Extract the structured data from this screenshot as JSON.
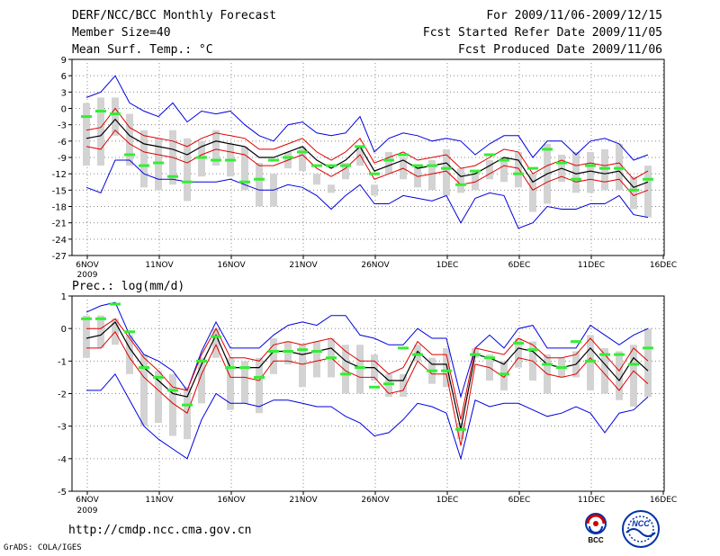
{
  "header": {
    "left": [
      "DERF/NCC/BCC Monthly Forecast",
      "Member Size=40",
      "Mean Surf. Temp.: °C"
    ],
    "right": [
      "For 2009/11/06-2009/12/15",
      "Fcst Started Refer Date 2009/11/05",
      "Fcst Produced Date 2009/11/06"
    ]
  },
  "footer": {
    "url": "http://cmdp.ncc.cma.gov.cn",
    "credit": "GrADS: COLA/IGES",
    "logos": [
      "BCC",
      "NCC"
    ]
  },
  "colors": {
    "mean": "#000000",
    "spread": "#e00000",
    "envelope": "#0000e0",
    "member_bar": "#d3d3d3",
    "marker": "#33ee33",
    "grid": "#888888"
  },
  "chart_data": [
    {
      "type": "line",
      "title": "Mean Surf. Temp.: °C",
      "x_tick_labels": [
        "6NOV",
        "11NOV",
        "16NOV",
        "21NOV",
        "26NOV",
        "1DEC",
        "6DEC",
        "11DEC",
        "16DEC"
      ],
      "x_sub_label": "2009",
      "ylim": [
        -27,
        9
      ],
      "yticks": [
        9,
        6,
        3,
        0,
        -3,
        -6,
        -9,
        -12,
        -15,
        -18,
        -21,
        -24,
        -27
      ],
      "days": 40,
      "series": [
        {
          "name": "ensemble mean",
          "values": [
            -5.5,
            -5,
            -2,
            -5,
            -6.5,
            -7,
            -7.5,
            -8.5,
            -7,
            -6,
            -6.5,
            -7,
            -9,
            -9,
            -8,
            -7,
            -9.5,
            -11,
            -9.5,
            -7,
            -11.5,
            -10.5,
            -9.5,
            -11,
            -10.5,
            -10,
            -12.5,
            -12,
            -10.5,
            -9,
            -9.5,
            -13.5,
            -12,
            -11,
            -12,
            -11.5,
            -12,
            -11.5,
            -14.5,
            -13.5
          ]
        },
        {
          "name": "upper spread",
          "values": [
            -4,
            -3.5,
            0,
            -3.5,
            -5,
            -5.5,
            -6,
            -7,
            -5.5,
            -4.5,
            -5,
            -5.5,
            -7.5,
            -7.5,
            -6.5,
            -5.5,
            -8,
            -9.5,
            -8,
            -5.5,
            -10,
            -9,
            -8,
            -9.5,
            -9,
            -8.5,
            -11,
            -10.5,
            -9,
            -7.5,
            -8,
            -12,
            -10.5,
            -9.5,
            -10.5,
            -10,
            -10.5,
            -10,
            -13,
            -11.5
          ]
        },
        {
          "name": "lower spread",
          "values": [
            -7,
            -7.5,
            -4,
            -6.5,
            -8,
            -8.5,
            -9,
            -10,
            -8.5,
            -7.5,
            -8,
            -8.5,
            -10.5,
            -10.5,
            -9.5,
            -8.5,
            -11,
            -12.5,
            -11,
            -8.5,
            -13,
            -12,
            -11,
            -12.5,
            -12,
            -11.5,
            -14,
            -13.5,
            -12,
            -10.5,
            -11,
            -15,
            -13.5,
            -12.5,
            -13.5,
            -13,
            -13.5,
            -13,
            -16,
            -15
          ]
        },
        {
          "name": "max envelope",
          "values": [
            2,
            3,
            6,
            1,
            -0.5,
            -1.5,
            1,
            -2.5,
            -0.5,
            -1,
            -0.5,
            -3,
            -5,
            -6,
            -3,
            -2.5,
            -4.5,
            -5,
            -4.5,
            -1.5,
            -8,
            -5.5,
            -4.5,
            -5,
            -6,
            -5.5,
            -6,
            -8.5,
            -6.5,
            -5,
            -5,
            -9,
            -6,
            -6,
            -8.5,
            -6,
            -5.5,
            -6.5,
            -9.5,
            -8.5
          ]
        },
        {
          "name": "min envelope",
          "values": [
            -14.5,
            -15.5,
            -9.5,
            -9.5,
            -12,
            -13,
            -13,
            -13.5,
            -13.5,
            -13.5,
            -13,
            -14,
            -15,
            -15,
            -14,
            -14.5,
            -16,
            -18.5,
            -16,
            -14,
            -17.5,
            -17.5,
            -16,
            -16.5,
            -17,
            -16,
            -21,
            -16.5,
            -15.5,
            -16,
            -22,
            -21,
            -18,
            -18.5,
            -18.5,
            -17.5,
            -17.5,
            -16,
            -19.5,
            -20
          ]
        },
        {
          "name": "member max",
          "values": [
            1,
            2,
            2,
            -1,
            -4,
            -5.5,
            -4,
            -5.5,
            -6,
            -4,
            -6.5,
            -7,
            -10,
            -12,
            -8,
            -7,
            -12,
            -14,
            -10,
            -7,
            -14,
            -8,
            -9,
            -10.5,
            -9.5,
            -7.5,
            -11,
            -11.5,
            -9.5,
            -9,
            -8,
            -12,
            -6.5,
            -8.5,
            -8,
            -8,
            -7.5,
            -6.5,
            -12.5,
            -10.5
          ]
        },
        {
          "name": "member min",
          "values": [
            -10.5,
            -10.5,
            -5,
            -10.5,
            -14.5,
            -15,
            -14,
            -17,
            -12.5,
            -10.5,
            -12.5,
            -15,
            -18,
            -18,
            -11,
            -11.5,
            -14,
            -15.5,
            -13,
            -10.5,
            -16,
            -12,
            -13,
            -14.5,
            -15,
            -16,
            -15.5,
            -15,
            -13,
            -13.5,
            -14.5,
            -19,
            -17.5,
            -13.5,
            -15.5,
            -15.5,
            -15,
            -15,
            -18.5,
            -20
          ]
        },
        {
          "name": "marker",
          "values": [
            -1.5,
            -0.5,
            -1,
            -8.5,
            -10.5,
            -10,
            -12.5,
            -13.5,
            -9,
            -9.5,
            -9.5,
            -13.5,
            -13,
            -9.5,
            -9,
            -8,
            -10.5,
            -10.5,
            -10.5,
            -7,
            -12,
            -9.5,
            -8.5,
            -10.5,
            -10.5,
            -11,
            -14,
            -11.5,
            -8.5,
            -9.5,
            -12,
            -11,
            -7.5,
            -10,
            -13,
            -10.5,
            -11,
            -11,
            -15,
            -13
          ]
        }
      ]
    },
    {
      "type": "line",
      "title": "Prec.: log(mm/d)",
      "x_tick_labels": [
        "6NOV",
        "11NOV",
        "16NOV",
        "21NOV",
        "26NOV",
        "1DEC",
        "6DEC",
        "11DEC",
        "16DEC"
      ],
      "x_sub_label": "2009",
      "ylim": [
        -5,
        1
      ],
      "yticks": [
        1,
        0,
        -1,
        -2,
        -3,
        -4,
        -5
      ],
      "days": 40,
      "series": [
        {
          "name": "ensemble mean",
          "values": [
            -0.3,
            -0.2,
            0.2,
            -0.6,
            -1.2,
            -1.6,
            -2,
            -2.1,
            -1.1,
            -0.2,
            -1.2,
            -1.2,
            -1.2,
            -0.7,
            -0.7,
            -0.8,
            -0.7,
            -0.6,
            -1,
            -1.2,
            -1.2,
            -1.6,
            -1.6,
            -0.7,
            -1.1,
            -1.1,
            -3.1,
            -0.8,
            -0.9,
            -1.1,
            -0.6,
            -0.7,
            -1.1,
            -1.2,
            -1.1,
            -0.6,
            -1.1,
            -1.6,
            -0.9,
            -1.3
          ]
        },
        {
          "name": "upper spread",
          "values": [
            0,
            0,
            0.3,
            -0.3,
            -0.9,
            -1.3,
            -1.8,
            -1.9,
            -0.8,
            0,
            -0.9,
            -0.9,
            -1,
            -0.5,
            -0.4,
            -0.5,
            -0.4,
            -0.3,
            -0.7,
            -1,
            -1,
            -1.4,
            -1.2,
            -0.4,
            -0.8,
            -0.8,
            -2.8,
            -0.6,
            -0.7,
            -0.8,
            -0.3,
            -0.5,
            -0.9,
            -0.9,
            -0.8,
            -0.3,
            -0.8,
            -1.3,
            -0.6,
            -1
          ]
        },
        {
          "name": "lower spread",
          "values": [
            -0.6,
            -0.6,
            -0.1,
            -0.9,
            -1.5,
            -1.9,
            -2.3,
            -2.6,
            -1.4,
            -0.5,
            -1.5,
            -1.5,
            -1.6,
            -1,
            -1,
            -1.1,
            -1,
            -0.9,
            -1.3,
            -1.5,
            -1.5,
            -2,
            -1.9,
            -1,
            -1.4,
            -1.4,
            -3.6,
            -1.1,
            -1.2,
            -1.5,
            -0.9,
            -1,
            -1.4,
            -1.5,
            -1.4,
            -0.9,
            -1.4,
            -1.9,
            -1.3,
            -1.7
          ]
        },
        {
          "name": "max envelope",
          "values": [
            0.5,
            0.7,
            0.8,
            -0.2,
            -0.8,
            -1,
            -1.3,
            -1.9,
            -0.7,
            0.2,
            -0.6,
            -0.6,
            -0.6,
            -0.2,
            0.1,
            0.2,
            0.1,
            0.4,
            0.4,
            -0.2,
            -0.3,
            -0.5,
            -0.5,
            0,
            -0.3,
            -0.3,
            -2.1,
            -0.6,
            -0.2,
            -0.6,
            0,
            0.1,
            -0.6,
            -0.6,
            -0.6,
            0.1,
            -0.2,
            -0.5,
            -0.2,
            0
          ]
        },
        {
          "name": "min envelope",
          "values": [
            -1.9,
            -1.9,
            -1.4,
            -2.2,
            -3,
            -3.4,
            -3.7,
            -4,
            -2.8,
            -2,
            -2.3,
            -2.3,
            -2.4,
            -2.2,
            -2.2,
            -2.3,
            -2.4,
            -2.4,
            -2.7,
            -2.9,
            -3.3,
            -3.2,
            -2.8,
            -2.3,
            -2.4,
            -2.6,
            -4,
            -2.2,
            -2.4,
            -2.3,
            -2.3,
            -2.5,
            -2.7,
            -2.6,
            -2.4,
            -2.6,
            -3.2,
            -2.6,
            -2.5,
            -2.1
          ]
        },
        {
          "name": "member max",
          "values": [
            0.4,
            0.4,
            0.3,
            -0.2,
            -0.8,
            -1.3,
            -1.4,
            -1.8,
            -0.9,
            0,
            -0.9,
            -1,
            -0.9,
            -0.3,
            -0.4,
            -0.5,
            -0.4,
            -0.3,
            -0.5,
            -0.5,
            -0.8,
            -1.4,
            -1.4,
            -0.5,
            -0.9,
            -0.6,
            -2.9,
            -0.6,
            -0.8,
            -1,
            -0.3,
            -0.4,
            -0.8,
            -0.9,
            -0.7,
            -0.2,
            -0.6,
            -0.7,
            -0.5,
            0
          ]
        },
        {
          "name": "member min",
          "values": [
            -0.9,
            -0.6,
            -0.5,
            -1.4,
            -3,
            -2.9,
            -3.3,
            -3.4,
            -2.3,
            -0.9,
            -2.5,
            -2.3,
            -2.6,
            -1.4,
            -1.1,
            -1.8,
            -1.5,
            -1.5,
            -2,
            -2,
            -1.6,
            -2.1,
            -2.1,
            -1,
            -1.7,
            -1.8,
            -3.4,
            -0.9,
            -1.6,
            -1.9,
            -1.2,
            -1.6,
            -2,
            -1.5,
            -1.5,
            -1.9,
            -2,
            -2.2,
            -2.4,
            -2.1
          ]
        },
        {
          "name": "marker",
          "values": [
            0.3,
            0.3,
            0.75,
            -0.1,
            -1.2,
            -1.5,
            -1.9,
            -2.35,
            -1,
            -0.25,
            -1.2,
            -1.2,
            -1.5,
            -0.7,
            -0.7,
            -0.65,
            -0.7,
            -0.9,
            -1.4,
            -1.2,
            -1.8,
            -1.7,
            -0.6,
            -0.8,
            -1.3,
            -1.3,
            -3.1,
            -0.8,
            -0.9,
            -1.4,
            -0.45,
            -0.65,
            -1.1,
            -1.2,
            -0.4,
            -1,
            -0.8,
            -0.8,
            -1.1,
            -0.6
          ]
        }
      ]
    }
  ]
}
